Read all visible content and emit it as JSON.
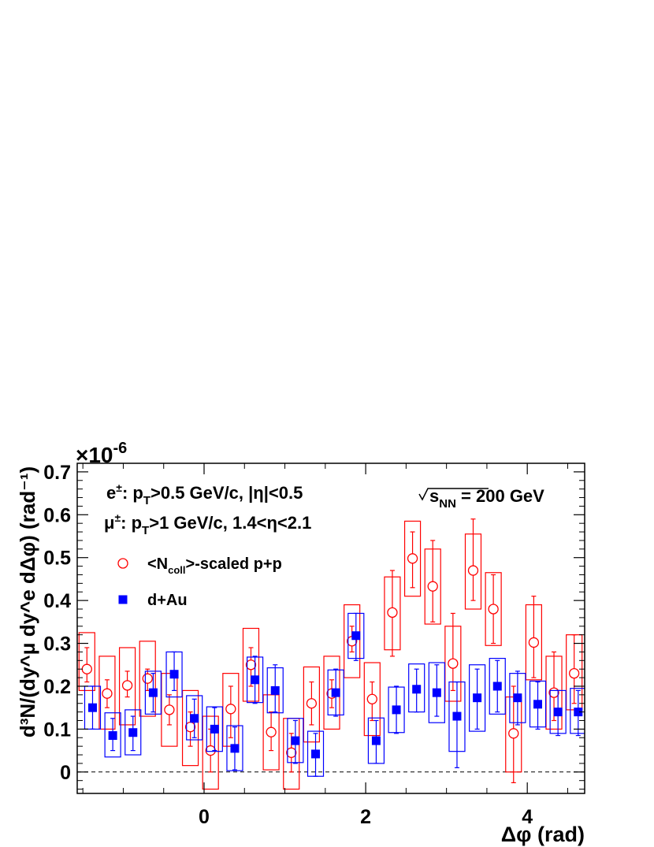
{
  "chart_data": {
    "type": "scatter",
    "xlabel": "Δφ (rad)",
    "ylabel": "d³N/(dy^μ dy^e dΔφ) (rad⁻¹)",
    "y_multiplier_label": "×10",
    "y_multiplier_exponent": "-6",
    "xlim": [
      -1.57,
      4.71
    ],
    "ylim": [
      -0.05,
      0.72
    ],
    "x_ticks": [
      0,
      2,
      4
    ],
    "y_ticks": [
      0,
      0.1,
      0.2,
      0.3,
      0.4,
      0.5,
      0.6,
      0.7
    ],
    "y_tick_labels": [
      "0",
      "0.1",
      "0.2",
      "0.3",
      "0.4",
      "0.5",
      "0.6",
      "0.7"
    ],
    "reference_line": {
      "y": 0,
      "style": "dashed"
    },
    "grid": false,
    "legend_position": "upper-left",
    "annotations": {
      "cut_e": {
        "pre": "e",
        "sup": "±",
        "mid": ": p",
        "sub": "T",
        "post": ">0.5 GeV/c, |η|<0.5"
      },
      "cut_mu": {
        "pre": "μ",
        "sup": "±",
        "mid": ": p",
        "sub": "T",
        "post": ">1 GeV/c, 1.4<η<2.1"
      },
      "energy": {
        "sqrt": "√",
        "s": "s",
        "sub": "NN",
        "post": " = 200 GeV"
      }
    },
    "series": [
      {
        "name": "<Ncoll>-scaled p+p",
        "legend_pre": "<N",
        "legend_sub": "coll",
        "legend_post": ">-scaled p+p",
        "color": "#ff0000",
        "marker": "open-circle",
        "points": [
          {
            "x": -1.45,
            "y": 0.24,
            "stat": [
              0.21,
              0.29
            ],
            "sys": [
              0.19,
              0.325
            ]
          },
          {
            "x": -1.2,
            "y": 0.183,
            "stat": [
              0.15,
              0.215
            ],
            "sys": [
              0.1,
              0.27
            ]
          },
          {
            "x": -0.95,
            "y": 0.202,
            "stat": [
              0.175,
              0.235
            ],
            "sys": [
              0.11,
              0.29
            ]
          },
          {
            "x": -0.7,
            "y": 0.218,
            "stat": [
              0.19,
              0.24
            ],
            "sys": [
              0.13,
              0.305
            ]
          },
          {
            "x": -0.43,
            "y": 0.145,
            "stat": [
              0.11,
              0.18
            ],
            "sys": [
              0.06,
              0.23
            ]
          },
          {
            "x": -0.17,
            "y": 0.105,
            "stat": [
              0.06,
              0.14
            ],
            "sys": [
              0.015,
              0.19
            ]
          },
          {
            "x": 0.08,
            "y": 0.05,
            "stat": [
              0.0,
              0.1
            ],
            "sys": [
              -0.04,
              0.13
            ]
          },
          {
            "x": 0.33,
            "y": 0.147,
            "stat": [
              0.08,
              0.2
            ],
            "sys": [
              0.06,
              0.23
            ]
          },
          {
            "x": 0.58,
            "y": 0.25,
            "stat": [
              0.2,
              0.29
            ],
            "sys": [
              0.165,
              0.335
            ]
          },
          {
            "x": 0.83,
            "y": 0.093,
            "stat": [
              0.05,
              0.14
            ],
            "sys": [
              0.005,
              0.18
            ]
          },
          {
            "x": 1.08,
            "y": 0.045,
            "stat": [
              0.0,
              0.09
            ],
            "sys": [
              -0.04,
              0.125
            ]
          },
          {
            "x": 1.33,
            "y": 0.16,
            "stat": [
              0.11,
              0.21
            ],
            "sys": [
              0.07,
              0.245
            ]
          },
          {
            "x": 1.58,
            "y": 0.183,
            "stat": [
              0.15,
              0.215
            ],
            "sys": [
              0.1,
              0.27
            ]
          },
          {
            "x": 1.83,
            "y": 0.305,
            "stat": [
              0.28,
              0.34
            ],
            "sys": [
              0.22,
              0.39
            ]
          },
          {
            "x": 2.08,
            "y": 0.17,
            "stat": [
              0.12,
              0.21
            ],
            "sys": [
              0.085,
              0.255
            ]
          },
          {
            "x": 2.33,
            "y": 0.372,
            "stat": [
              0.27,
              0.47
            ],
            "sys": [
              0.285,
              0.455
            ]
          },
          {
            "x": 2.58,
            "y": 0.498,
            "stat": [
              0.43,
              0.56
            ],
            "sys": [
              0.41,
              0.585
            ]
          },
          {
            "x": 2.83,
            "y": 0.433,
            "stat": [
              0.35,
              0.54
            ],
            "sys": [
              0.345,
              0.52
            ]
          },
          {
            "x": 3.08,
            "y": 0.253,
            "stat": [
              0.19,
              0.37
            ],
            "sys": [
              0.165,
              0.34
            ]
          },
          {
            "x": 3.33,
            "y": 0.47,
            "stat": [
              0.4,
              0.59
            ],
            "sys": [
              0.38,
              0.555
            ]
          },
          {
            "x": 3.58,
            "y": 0.38,
            "stat": [
              0.3,
              0.46
            ],
            "sys": [
              0.295,
              0.465
            ]
          },
          {
            "x": 3.83,
            "y": 0.09,
            "stat": [
              -0.025,
              0.2
            ],
            "sys": [
              0.0,
              0.175
            ]
          },
          {
            "x": 4.08,
            "y": 0.302,
            "stat": [
              0.22,
              0.41
            ],
            "sys": [
              0.215,
              0.39
            ]
          },
          {
            "x": 4.33,
            "y": 0.185,
            "stat": [
              0.12,
              0.28
            ],
            "sys": [
              0.1,
              0.27
            ]
          },
          {
            "x": 4.58,
            "y": 0.23,
            "stat": [
              0.16,
              0.32
            ],
            "sys": [
              0.145,
              0.32
            ]
          }
        ]
      },
      {
        "name": "d+Au",
        "legend_pre": "d+Au",
        "legend_sub": "",
        "legend_post": "",
        "color": "#0000ff",
        "marker": "filled-square",
        "points": [
          {
            "x": -1.38,
            "y": 0.15,
            "stat": [
              0.1,
              0.2
            ],
            "sys": [
              0.1,
              0.2
            ]
          },
          {
            "x": -1.13,
            "y": 0.085,
            "stat": [
              0.05,
              0.125
            ],
            "sys": [
              0.035,
              0.138
            ]
          },
          {
            "x": -0.88,
            "y": 0.092,
            "stat": [
              0.05,
              0.13
            ],
            "sys": [
              0.04,
              0.145
            ]
          },
          {
            "x": -0.63,
            "y": 0.185,
            "stat": [
              0.14,
              0.23
            ],
            "sys": [
              0.135,
              0.235
            ]
          },
          {
            "x": -0.37,
            "y": 0.228,
            "stat": [
              0.19,
              0.28
            ],
            "sys": [
              0.175,
              0.28
            ]
          },
          {
            "x": -0.12,
            "y": 0.125,
            "stat": [
              0.08,
              0.17
            ],
            "sys": [
              0.075,
              0.178
            ]
          },
          {
            "x": 0.13,
            "y": 0.1,
            "stat": [
              0.05,
              0.15
            ],
            "sys": [
              0.048,
              0.152
            ]
          },
          {
            "x": 0.38,
            "y": 0.055,
            "stat": [
              0.005,
              0.105
            ],
            "sys": [
              0.003,
              0.108
            ]
          },
          {
            "x": 0.63,
            "y": 0.215,
            "stat": [
              0.16,
              0.27
            ],
            "sys": [
              0.162,
              0.268
            ]
          },
          {
            "x": 0.88,
            "y": 0.19,
            "stat": [
              0.14,
              0.25
            ],
            "sys": [
              0.138,
              0.243
            ]
          },
          {
            "x": 1.13,
            "y": 0.073,
            "stat": [
              0.02,
              0.12
            ],
            "sys": [
              0.022,
              0.125
            ]
          },
          {
            "x": 1.38,
            "y": 0.042,
            "stat": [
              -0.01,
              0.09
            ],
            "sys": [
              -0.01,
              0.095
            ]
          },
          {
            "x": 1.63,
            "y": 0.185,
            "stat": [
              0.13,
              0.24
            ],
            "sys": [
              0.133,
              0.238
            ]
          },
          {
            "x": 1.88,
            "y": 0.318,
            "stat": [
              0.26,
              0.37
            ],
            "sys": [
              0.265,
              0.37
            ]
          },
          {
            "x": 2.13,
            "y": 0.073,
            "stat": [
              0.02,
              0.12
            ],
            "sys": [
              0.02,
              0.126
            ]
          },
          {
            "x": 2.38,
            "y": 0.145,
            "stat": [
              0.09,
              0.2
            ],
            "sys": [
              0.092,
              0.198
            ]
          },
          {
            "x": 2.63,
            "y": 0.193,
            "stat": [
              0.14,
              0.24
            ],
            "sys": [
              0.14,
              0.252
            ]
          },
          {
            "x": 2.88,
            "y": 0.185,
            "stat": [
              0.13,
              0.25
            ],
            "sys": [
              0.115,
              0.255
            ]
          },
          {
            "x": 3.13,
            "y": 0.13,
            "stat": [
              0.01,
              0.21
            ],
            "sys": [
              0.048,
              0.21
            ]
          },
          {
            "x": 3.38,
            "y": 0.173,
            "stat": [
              0.1,
              0.24
            ],
            "sys": [
              0.095,
              0.25
            ]
          },
          {
            "x": 3.63,
            "y": 0.2,
            "stat": [
              0.14,
              0.26
            ],
            "sys": [
              0.135,
              0.265
            ]
          },
          {
            "x": 3.88,
            "y": 0.173,
            "stat": [
              0.11,
              0.235
            ],
            "sys": [
              0.115,
              0.23
            ]
          },
          {
            "x": 4.13,
            "y": 0.158,
            "stat": [
              0.1,
              0.21
            ],
            "sys": [
              0.105,
              0.212
            ]
          },
          {
            "x": 4.38,
            "y": 0.14,
            "stat": [
              0.085,
              0.19
            ],
            "sys": [
              0.09,
              0.19
            ]
          },
          {
            "x": 4.63,
            "y": 0.14,
            "stat": [
              0.085,
              0.19
            ],
            "sys": [
              0.09,
              0.195
            ]
          }
        ]
      }
    ]
  }
}
